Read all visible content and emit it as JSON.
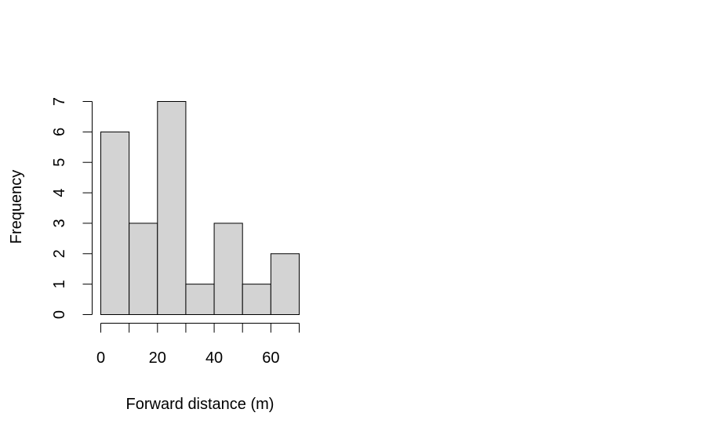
{
  "chart_data": {
    "type": "bar",
    "subtype": "histogram",
    "title": "",
    "xlabel": "Forward distance (m)",
    "ylabel": "Frequency",
    "bin_edges": [
      0,
      10,
      20,
      30,
      40,
      50,
      60,
      70
    ],
    "values": [
      6,
      3,
      7,
      1,
      3,
      1,
      2
    ],
    "xlim": [
      0,
      70
    ],
    "ylim": [
      0,
      7
    ],
    "x_ticks": [
      0,
      10,
      20,
      30,
      40,
      50,
      60,
      70
    ],
    "x_tick_labels": [
      "0",
      "",
      "20",
      "",
      "40",
      "",
      "60",
      ""
    ],
    "y_ticks": [
      0,
      1,
      2,
      3,
      4,
      5,
      6,
      7
    ],
    "y_tick_labels": [
      "0",
      "1",
      "2",
      "3",
      "4",
      "5",
      "6",
      "7"
    ],
    "grid": false,
    "legend": "none",
    "bar_color": "#d3d3d3",
    "edge_color": "#000000"
  }
}
